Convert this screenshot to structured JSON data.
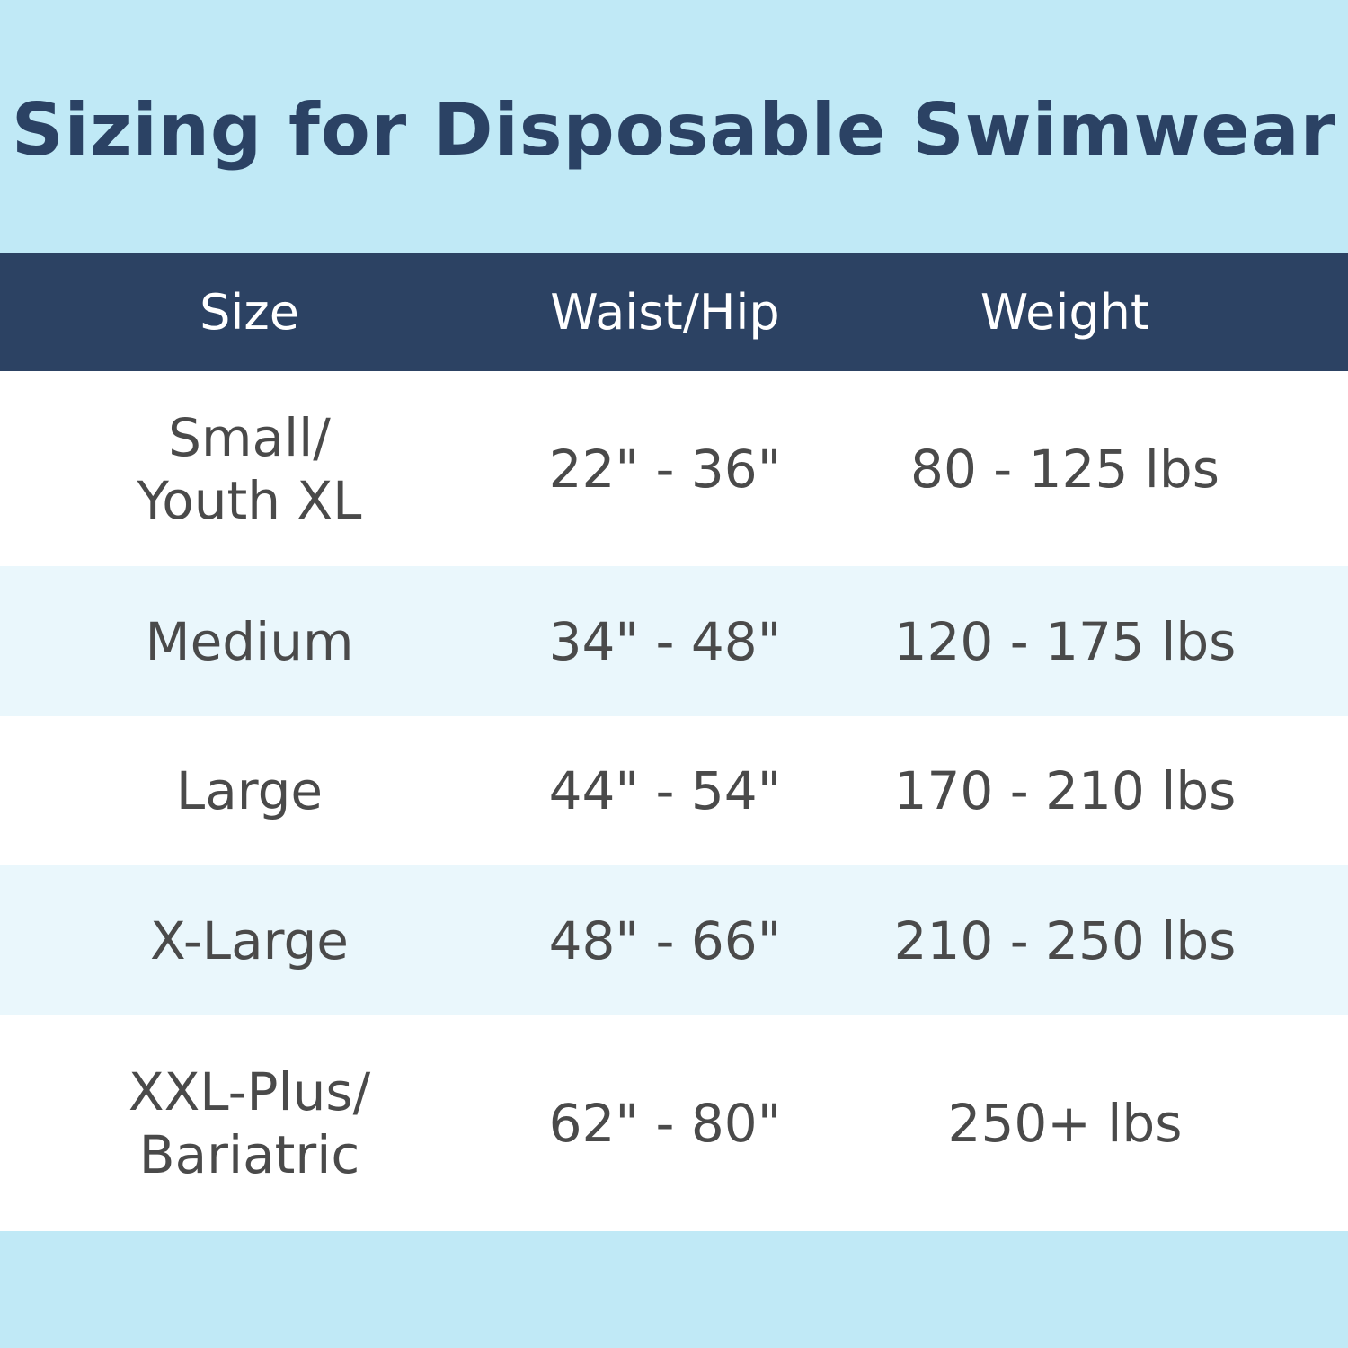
{
  "title": "Sizing for Disposable Swimwear",
  "colors": {
    "background": "#c0e9f6",
    "header": "#2c4263",
    "title": "#2b4264",
    "row_alt": "#eaf7fc",
    "text": "#4a4a4a"
  },
  "table": {
    "headers": [
      "Size",
      "Waist/Hip",
      "Weight"
    ],
    "rows": [
      {
        "size_line1": "Small/",
        "size_line2": "Youth XL",
        "waist": "22\" - 36\"",
        "weight": "80 - 125 lbs"
      },
      {
        "size_line1": "Medium",
        "size_line2": "",
        "waist": "34\" - 48\"",
        "weight": "120 - 175 lbs"
      },
      {
        "size_line1": "Large",
        "size_line2": "",
        "waist": "44\" - 54\"",
        "weight": "170 - 210 lbs"
      },
      {
        "size_line1": "X-Large",
        "size_line2": "",
        "waist": "48\" - 66\"",
        "weight": "210 - 250 lbs"
      },
      {
        "size_line1": "XXL-Plus/",
        "size_line2": "Bariatric",
        "waist": "62\" - 80\"",
        "weight": "250+ lbs"
      }
    ]
  }
}
